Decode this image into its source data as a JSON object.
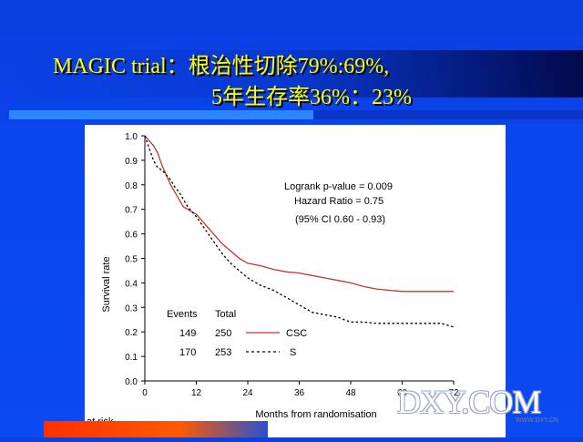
{
  "slide": {
    "title_line1": "MAGIC trial：根治性切除79%:69%,",
    "title_line2": "5年生存率36%：23%",
    "title_color": "#ffff00",
    "background_color": "#0b47f0"
  },
  "watermark": {
    "text": "DXY.COM",
    "url": "WWW.DXY.CN"
  },
  "chart_data": {
    "type": "line",
    "title": "",
    "xlabel": "Months from randomisation",
    "ylabel": "Survival rate",
    "xlim": [
      0,
      72
    ],
    "ylim": [
      0,
      1.0
    ],
    "xticks": [
      0,
      12,
      24,
      36,
      48,
      60,
      72
    ],
    "yticks": [
      0.0,
      0.1,
      0.2,
      0.3,
      0.4,
      0.5,
      0.6,
      0.7,
      0.8,
      0.9,
      1.0
    ],
    "ytick_labels": [
      "0.0",
      "0.1",
      "0.2",
      "0.3",
      "0.4",
      "0.5",
      "0.6",
      "0.7",
      "0.8",
      "0.9",
      "1.0"
    ],
    "xtick_labels": [
      "0",
      "12",
      "24",
      "36",
      "48",
      "60",
      "72"
    ],
    "grid": false,
    "annotations": [
      "Logrank p-value = 0.009",
      "Hazard Ratio = 0.75",
      "(95% CI 0.60 - 0.93)"
    ],
    "legend_header": [
      "Events",
      "Total"
    ],
    "legend": [
      {
        "events": "149",
        "total": "250",
        "name": "CSC",
        "color": "#c0392b",
        "style": "solid"
      },
      {
        "events": "170",
        "total": "253",
        "name": "S",
        "color": "#000000",
        "style": "dashed"
      }
    ],
    "at_risk_label": "at risk",
    "series": [
      {
        "name": "CSC",
        "color": "#c0392b",
        "dash": "solid",
        "x": [
          0,
          1,
          2,
          3,
          4,
          5,
          6,
          7,
          8,
          9,
          10,
          11,
          12,
          14,
          16,
          18,
          20,
          22,
          24,
          27,
          30,
          33,
          36,
          39,
          42,
          45,
          48,
          51,
          54,
          57,
          60,
          63,
          66,
          69,
          72
        ],
        "y": [
          1.0,
          0.98,
          0.96,
          0.93,
          0.88,
          0.84,
          0.8,
          0.77,
          0.74,
          0.71,
          0.7,
          0.69,
          0.68,
          0.64,
          0.6,
          0.56,
          0.53,
          0.5,
          0.48,
          0.47,
          0.455,
          0.445,
          0.44,
          0.43,
          0.42,
          0.41,
          0.4,
          0.385,
          0.375,
          0.37,
          0.365,
          0.365,
          0.365,
          0.365,
          0.365
        ]
      },
      {
        "name": "S",
        "color": "#000000",
        "dash": "dashed",
        "x": [
          0,
          1,
          2,
          3,
          4,
          5,
          6,
          7,
          8,
          9,
          10,
          11,
          12,
          14,
          16,
          18,
          20,
          22,
          24,
          27,
          30,
          33,
          36,
          39,
          42,
          45,
          48,
          51,
          54,
          57,
          60,
          63,
          66,
          69,
          72
        ],
        "y": [
          1.0,
          0.95,
          0.9,
          0.87,
          0.86,
          0.84,
          0.82,
          0.79,
          0.77,
          0.74,
          0.71,
          0.69,
          0.67,
          0.62,
          0.57,
          0.52,
          0.48,
          0.45,
          0.42,
          0.39,
          0.37,
          0.34,
          0.31,
          0.28,
          0.27,
          0.26,
          0.24,
          0.24,
          0.235,
          0.235,
          0.235,
          0.235,
          0.235,
          0.235,
          0.22
        ]
      }
    ]
  }
}
